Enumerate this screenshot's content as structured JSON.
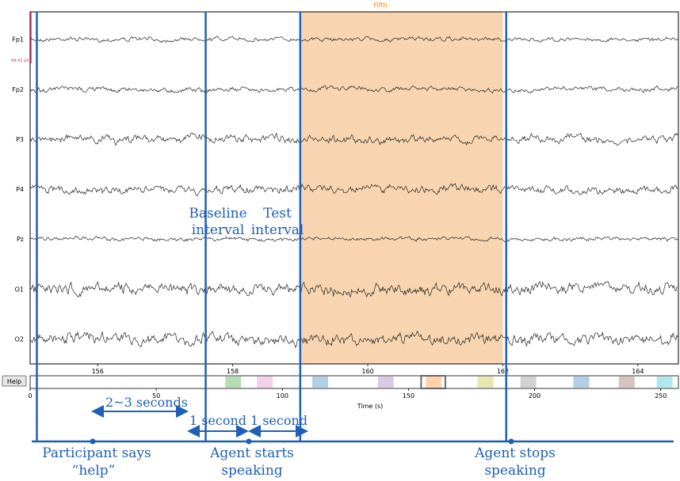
{
  "chart_data": {
    "type": "line",
    "title": "Fifth",
    "channels": [
      "Fp1",
      "Fp2",
      "P3",
      "P4",
      "Pz",
      "O1",
      "O2"
    ],
    "scale_label": "64.42 µV",
    "time_axis": {
      "ticks": [
        156,
        158,
        160,
        162,
        164
      ],
      "range": [
        155.0,
        164.6
      ]
    },
    "overview_axis": {
      "ticks": [
        0,
        50,
        100,
        150,
        200,
        250
      ],
      "xlabel": "Time (s)",
      "range": [
        0,
        257
      ]
    },
    "highlight_span": [
      159.0,
      162.0
    ],
    "event_lines": [
      155.1,
      157.6,
      159.0,
      162.05
    ],
    "overview_marks": [
      {
        "t": 80.5,
        "color": "#2ca02c"
      },
      {
        "t": 93.0,
        "color": "#e377c2"
      },
      {
        "t": 115.0,
        "color": "#1f77b4"
      },
      {
        "t": 141.0,
        "color": "#9467bd"
      },
      {
        "t": 160.0,
        "color": "#ff7f0e"
      },
      {
        "t": 180.5,
        "color": "#bcbd22"
      },
      {
        "t": 197.5,
        "color": "#7f7f7f"
      },
      {
        "t": 218.5,
        "color": "#1f77b4"
      },
      {
        "t": 236.5,
        "color": "#8c564b"
      },
      {
        "t": 251.5,
        "color": "#17becf"
      }
    ]
  },
  "help_button": "Help",
  "annotations": {
    "baseline": [
      "Baseline",
      "interval"
    ],
    "test": [
      "Test",
      "interval"
    ],
    "gap_2_3": "2~3 seconds",
    "one_second_a": "1 second",
    "one_second_b": "1 second",
    "participant": [
      "Participant says",
      "“help”"
    ],
    "agent_starts": [
      "Agent starts",
      "speaking"
    ],
    "agent_stops": [
      "Agent stops",
      "speaking"
    ]
  },
  "colors": {
    "annotation": "#1f5fb8",
    "highlight": "#f8d5b0",
    "title": "#ff7f0e",
    "scale": "#d6336c",
    "trace": "#222222"
  }
}
